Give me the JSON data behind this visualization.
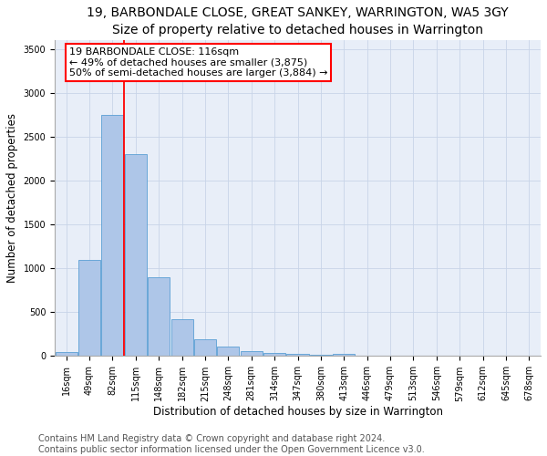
{
  "title": "19, BARBONDALE CLOSE, GREAT SANKEY, WARRINGTON, WA5 3GY",
  "subtitle": "Size of property relative to detached houses in Warrington",
  "xlabel": "Distribution of detached houses by size in Warrington",
  "ylabel": "Number of detached properties",
  "categories": [
    "16sqm",
    "49sqm",
    "82sqm",
    "115sqm",
    "148sqm",
    "182sqm",
    "215sqm",
    "248sqm",
    "281sqm",
    "314sqm",
    "347sqm",
    "380sqm",
    "413sqm",
    "446sqm",
    "479sqm",
    "513sqm",
    "546sqm",
    "579sqm",
    "612sqm",
    "645sqm",
    "678sqm"
  ],
  "values": [
    50,
    1100,
    2750,
    2300,
    900,
    420,
    190,
    105,
    60,
    35,
    20,
    12,
    25,
    8,
    5,
    4,
    3,
    3,
    2,
    2,
    2
  ],
  "bar_color": "#aec6e8",
  "bar_edge_color": "#5a9fd4",
  "annotation_box_text": "19 BARBONDALE CLOSE: 116sqm\n← 49% of detached houses are smaller (3,875)\n50% of semi-detached houses are larger (3,884) →",
  "annotation_box_color": "white",
  "annotation_box_edge_color": "red",
  "vline_color": "red",
  "vline_x_index": 2.5,
  "ylim": [
    0,
    3600
  ],
  "yticks": [
    0,
    500,
    1000,
    1500,
    2000,
    2500,
    3000,
    3500
  ],
  "footer_line1": "Contains HM Land Registry data © Crown copyright and database right 2024.",
  "footer_line2": "Contains public sector information licensed under the Open Government Licence v3.0.",
  "title_fontsize": 10,
  "xlabel_fontsize": 8.5,
  "ylabel_fontsize": 8.5,
  "tick_fontsize": 7,
  "annotation_fontsize": 8,
  "footer_fontsize": 7
}
